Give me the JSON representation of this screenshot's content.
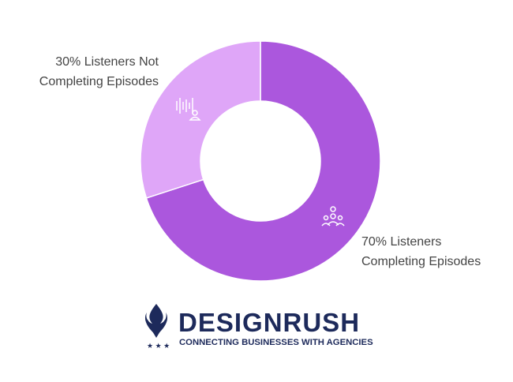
{
  "chart_data": {
    "type": "donut",
    "categories": [
      "Listeners Completing Episodes",
      "Listeners Not Completing Episodes"
    ],
    "values": [
      70,
      30
    ],
    "value_labels": [
      "70%",
      "30%"
    ],
    "colors": [
      "#ab57dd",
      "#dfa6f8"
    ]
  },
  "branding": {
    "name": "DESIGNRUSH",
    "tagline": "CONNECTING BUSINESSES WITH AGENCIES"
  }
}
